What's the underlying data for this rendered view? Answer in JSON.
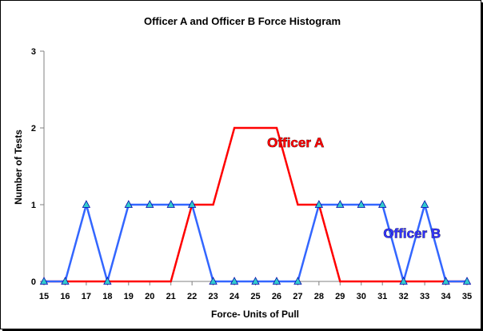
{
  "chart_data": {
    "type": "line",
    "title": "Officer A and Officer B Force Histogram",
    "xlabel": "Force- Units of Pull",
    "ylabel": "Number of Tests",
    "x": [
      15,
      16,
      17,
      18,
      19,
      20,
      21,
      22,
      23,
      24,
      25,
      26,
      27,
      28,
      29,
      30,
      31,
      32,
      33,
      34,
      35
    ],
    "xlim": [
      15,
      35
    ],
    "ylim": [
      0,
      3
    ],
    "yticks": [
      0,
      1,
      2,
      3
    ],
    "grid": false,
    "legend": "none",
    "series": [
      {
        "name": "Officer A",
        "color": "#ff0000",
        "marker": "none",
        "values": [
          0,
          0,
          0,
          0,
          0,
          0,
          0,
          1,
          1,
          2,
          2,
          2,
          1,
          1,
          0,
          0,
          0,
          0,
          0,
          0,
          0
        ]
      },
      {
        "name": "Officer B",
        "color": "#3366ff",
        "marker": "triangle",
        "marker_color": "#33cccc",
        "values": [
          0,
          0,
          1,
          0,
          1,
          1,
          1,
          1,
          0,
          0,
          0,
          0,
          0,
          1,
          1,
          1,
          1,
          0,
          1,
          0,
          0
        ]
      }
    ],
    "annotations": [
      {
        "text": "Officer A",
        "color": "#ff0000",
        "x": 26.9,
        "y": 1.75
      },
      {
        "text": "Officer B",
        "color": "#3333ff",
        "x": 32.4,
        "y": 0.57
      }
    ]
  }
}
